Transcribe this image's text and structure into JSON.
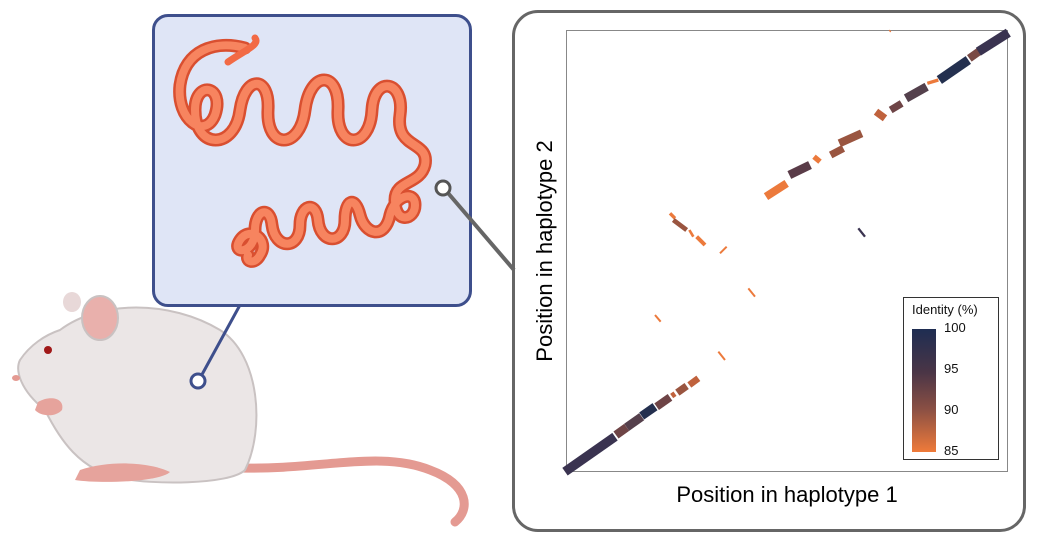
{
  "figure": {
    "plot": {
      "x_label": "Position in haplotype 1",
      "y_label": "Position in haplotype 2",
      "legend": {
        "title": "Identity (%)",
        "ticks": [
          "100",
          "95",
          "90",
          "85"
        ],
        "range": [
          85,
          100
        ],
        "colors": {
          "high": "#1e2d52",
          "mid": "#8a4f44",
          "low": "#ef7a3a"
        }
      }
    },
    "colors": {
      "inset_background": "#dfe5f6",
      "inset_border": "#3e4f8c",
      "worm": "#f26a45",
      "panel_border": "#666666"
    }
  }
}
